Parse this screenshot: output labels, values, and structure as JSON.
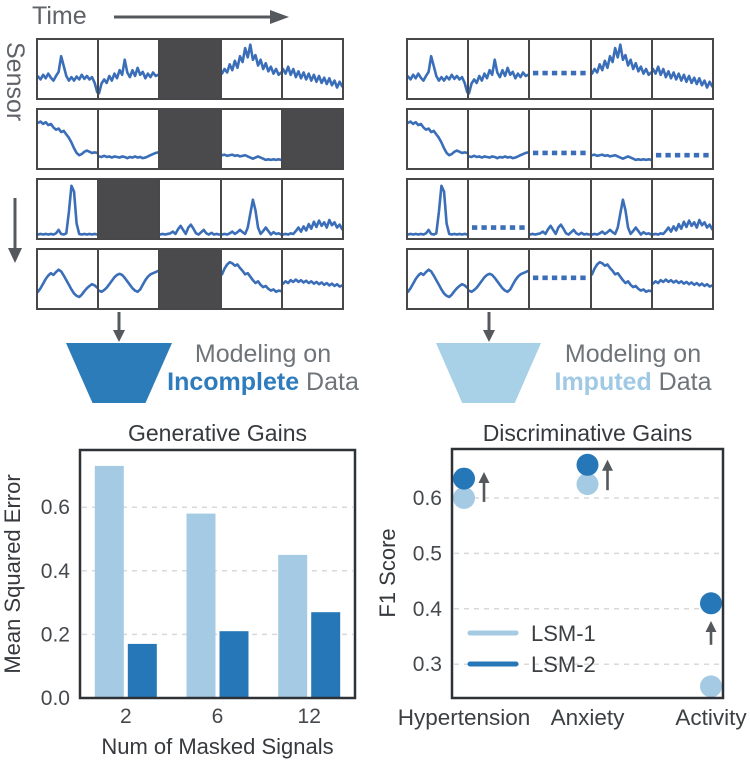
{
  "colors": {
    "signal_blue": "#3b6eb8",
    "mask_gray": "#4a4a4c",
    "border_gray": "#48484a",
    "arrow_gray": "#55585c",
    "label_gray": "#5f6368",
    "caption_gray": "#6f7478",
    "chart_text": "#36393d",
    "tick_text": "#45494d",
    "legend_text": "#3c4043",
    "grid_line": "#d9d9d9",
    "light_blue": "#a4cbe3",
    "dark_blue": "#2677b8"
  },
  "top": {
    "time_label": "Time",
    "sensor_label": "Sensor"
  },
  "funnels": {
    "left": {
      "line1": "Modeling on",
      "highlight": "Incomplete",
      "line2_rest": " Data",
      "color": "#2d7cba",
      "text_color": "#2e7cbd"
    },
    "right": {
      "line1": "Modeling on",
      "highlight": "Imputed",
      "line2_rest": " Data",
      "color": "#a8d0e6",
      "text_color": "#9fc9e4"
    }
  },
  "sensor_panel": {
    "rows": 4,
    "cols": 5,
    "signals": {
      "r1c1": [
        63,
        68,
        60,
        66,
        58,
        65,
        70,
        62,
        55,
        28,
        45,
        62,
        70,
        64,
        70,
        63,
        68,
        60,
        67,
        62,
        68,
        64,
        74,
        90
      ],
      "r1c2": [
        92,
        75,
        68,
        74,
        62,
        70,
        58,
        66,
        52,
        60,
        34,
        56,
        64,
        52,
        62,
        48,
        60,
        55,
        66,
        58,
        64,
        56,
        62,
        60
      ],
      "r1c4": [
        58,
        50,
        56,
        42,
        52,
        36,
        48,
        28,
        38,
        14,
        30,
        8,
        34,
        26,
        44,
        34,
        50,
        40,
        54,
        46,
        58,
        50,
        60,
        56
      ],
      "r1c5": [
        50,
        58,
        46,
        60,
        50,
        64,
        54,
        66,
        56,
        68,
        58,
        70,
        60,
        72,
        62,
        74,
        65,
        76,
        66,
        78,
        70,
        82,
        72,
        80
      ],
      "r2c1": [
        22,
        20,
        24,
        21,
        26,
        24,
        30,
        34,
        32,
        38,
        36,
        42,
        48,
        56,
        66,
        74,
        78,
        76,
        72,
        70,
        72,
        74,
        73,
        74
      ],
      "r2c2": [
        80,
        81,
        79,
        81,
        80,
        82,
        80,
        81,
        82,
        80,
        81,
        83,
        81,
        82,
        80,
        82,
        81,
        83,
        82,
        80,
        78,
        76,
        74,
        73
      ],
      "r2c4": [
        78,
        77,
        79,
        78,
        77,
        79,
        78,
        80,
        79,
        78,
        80,
        82,
        84,
        82,
        80,
        82,
        84,
        86,
        85,
        86,
        85,
        86,
        85,
        86
      ],
      "r3c1": [
        94,
        93,
        94,
        93,
        94,
        93,
        94,
        92,
        86,
        93,
        94,
        92,
        55,
        10,
        20,
        75,
        93,
        94,
        93,
        94,
        93,
        94,
        93,
        94
      ],
      "r3c3": [
        94,
        93,
        94,
        93,
        92,
        89,
        93,
        85,
        79,
        86,
        93,
        82,
        77,
        84,
        92,
        94,
        90,
        86,
        92,
        94,
        91,
        94,
        93,
        94
      ],
      "r3c4": [
        94,
        93,
        94,
        92,
        89,
        93,
        90,
        86,
        90,
        93,
        82,
        58,
        34,
        52,
        82,
        93,
        88,
        82,
        88,
        94,
        90,
        93,
        92,
        94
      ],
      "r3c5": [
        94,
        93,
        94,
        92,
        93,
        88,
        82,
        89,
        80,
        87,
        76,
        84,
        72,
        81,
        70,
        79,
        73,
        82,
        69,
        78,
        73,
        82,
        77,
        85
      ],
      "r4c1": [
        72,
        66,
        58,
        50,
        44,
        40,
        43,
        38,
        34,
        37,
        44,
        52,
        60,
        68,
        75,
        79,
        81,
        77,
        71,
        66,
        62,
        59,
        61,
        65
      ],
      "r4c2": [
        70,
        72,
        69,
        65,
        59,
        53,
        47,
        43,
        41,
        43,
        48,
        54,
        60,
        66,
        70,
        72,
        68,
        60,
        52,
        46,
        42,
        40,
        38,
        36
      ],
      "r4c4": [
        42,
        32,
        25,
        21,
        23,
        27,
        25,
        31,
        36,
        42,
        40,
        46,
        52,
        57,
        54,
        60,
        64,
        62,
        67,
        70,
        68,
        72,
        70,
        71
      ],
      "r4c5": [
        58,
        54,
        57,
        52,
        55,
        51,
        55,
        52,
        56,
        53,
        57,
        54,
        58,
        55,
        59,
        56,
        60,
        57,
        61,
        58,
        62,
        59,
        63,
        61
      ]
    },
    "left_grid": {
      "name": "incomplete",
      "rows": [
        [
          "s:r1c1",
          "s:r1c2",
          "m",
          "s:r1c4",
          "s:r1c5"
        ],
        [
          "s:r2c1",
          "s:r2c2",
          "m",
          "s:r2c4",
          "m"
        ],
        [
          "s:r3c1",
          "m",
          "s:r3c3",
          "s:r3c4",
          "s:r3c5"
        ],
        [
          "s:r4c1",
          "s:r4c2",
          "m",
          "s:r4c4",
          "s:r4c5"
        ]
      ]
    },
    "right_grid": {
      "name": "imputed",
      "rows": [
        [
          "s:r1c1",
          "s:r1c2",
          "d:57",
          "s:r1c4",
          "s:r1c5"
        ],
        [
          "s:r2c1",
          "s:r2c2",
          "d:74",
          "s:r2c4",
          "d:78"
        ],
        [
          "s:r3c1",
          "d:82",
          "s:r3c3",
          "s:r3c4",
          "s:r3c5"
        ],
        [
          "s:r4c1",
          "s:r4c2",
          "d:48",
          "s:r4c4",
          "s:r4c5"
        ]
      ]
    }
  },
  "chart_data": [
    {
      "type": "bar",
      "title": "Generative Gains",
      "xlabel": "Num of Masked Signals",
      "ylabel": "Mean Squared Error",
      "categories": [
        "2",
        "6",
        "12"
      ],
      "series": [
        {
          "name": "LSM-1",
          "color": "#a4cbe3",
          "values": [
            0.73,
            0.58,
            0.45
          ]
        },
        {
          "name": "LSM-2",
          "color": "#2677b8",
          "values": [
            0.17,
            0.21,
            0.27
          ]
        }
      ],
      "yticks": [
        0.0,
        0.2,
        0.4,
        0.6
      ],
      "ylim": [
        0,
        0.78
      ],
      "grid": "dashed-horizontal",
      "legend_position": "none"
    },
    {
      "type": "scatter",
      "title": "Discriminative Gains",
      "xlabel": "",
      "ylabel": "F1 Score",
      "categories": [
        "Hypertension",
        "Anxiety",
        "Activity"
      ],
      "series": [
        {
          "name": "LSM-1",
          "color": "#a4cbe3",
          "values": [
            0.6,
            0.625,
            0.26
          ]
        },
        {
          "name": "LSM-2",
          "color": "#2677b8",
          "values": [
            0.635,
            0.66,
            0.41
          ]
        }
      ],
      "yticks": [
        0.3,
        0.4,
        0.5,
        0.6
      ],
      "ylim": [
        0.24,
        0.69
      ],
      "grid": "dashed-horizontal",
      "legend": {
        "position": "lower-left",
        "entries": [
          "LSM-1",
          "LSM-2"
        ]
      },
      "annotations": [
        {
          "type": "up-arrow",
          "category": "Hypertension",
          "dx": 20,
          "from": 0.593,
          "to": 0.647
        },
        {
          "type": "up-arrow",
          "category": "Anxiety",
          "dx": 20,
          "from": 0.614,
          "to": 0.669
        },
        {
          "type": "up-arrow",
          "category": "Activity",
          "dx": 0,
          "from": 0.335,
          "to": 0.378
        }
      ]
    }
  ]
}
